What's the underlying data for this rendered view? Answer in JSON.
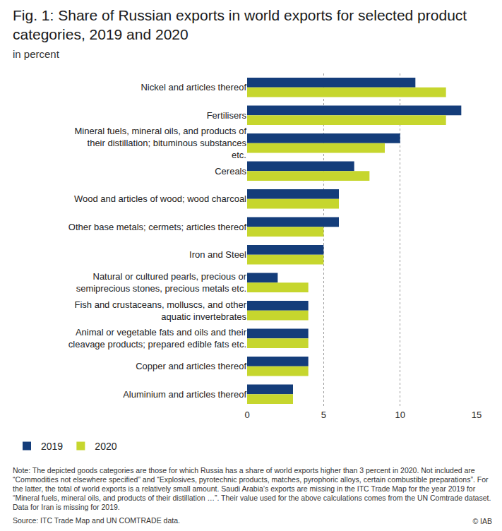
{
  "chart_data": {
    "type": "bar",
    "title": "Fig. 1: Share of Russian exports in world exports for selected product categories, 2019 and 2020",
    "subtitle": "in percent",
    "orientation": "horizontal",
    "categories": [
      "Nickel and articles thereof",
      "Fertilisers",
      "Mineral fuels, mineral oils, and products of their distillation; bituminous substances etc.",
      "Cereals",
      "Wood and articles of wood; wood charcoal",
      "Other base metals; cermets; articles thereof",
      "Iron and Steel",
      "Natural or cultured pearls, precious or semiprecious stones, precious metals etc.",
      "Fish and crustaceans, molluscs, and other aquatic invertebrates",
      "Animal or vegetable fats and oils and their cleavage products; prepared edible fats etc.",
      "Copper and articles thereof",
      "Aluminium and articles thereof"
    ],
    "series": [
      {
        "name": "2019",
        "color": "#143d7a",
        "values": [
          11,
          14,
          10,
          7,
          6,
          6,
          5,
          2,
          4,
          4,
          4,
          3
        ]
      },
      {
        "name": "2020",
        "color": "#c6d62e",
        "values": [
          13,
          13,
          9,
          8,
          6,
          5,
          5,
          4,
          4,
          4,
          4,
          3
        ]
      }
    ],
    "xlim": [
      0,
      15
    ],
    "xticks": [
      0,
      5,
      10,
      15
    ],
    "grid": true,
    "legend": "bottom left",
    "note": "Note: The depicted goods categories are those for which Russia has a share of world exports higher than 3 percent in 2020. Not included are “Commodities not elsewhere specified” and “Explosives, pyrotechnic products, matches, pyrophoric alloys, certain combustible preparations”. For the latter, the total of world exports is a relatively small amount. Saudi Arabia’s exports are missing in the ITC Trade Map for the year 2019 for “Mineral fuels, mineral oils, and products of their distillation …”. Their value used for the above calculations comes from the UN Comtrade dataset. Data for Iran is missing for 2019.",
    "source": "Source: ITC Trade Map and UN COMTRADE data.",
    "copyright": "© IAB"
  }
}
